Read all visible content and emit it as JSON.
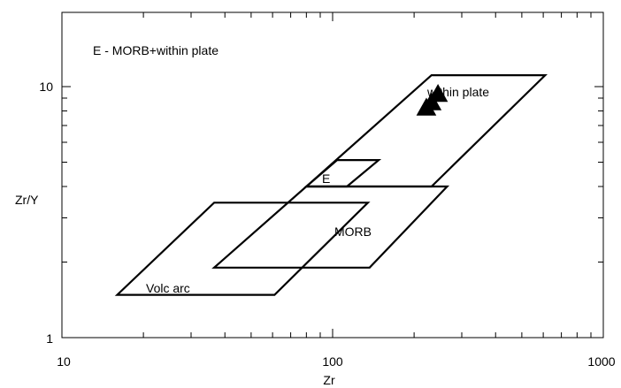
{
  "chart_data": {
    "type": "scatter",
    "title": "",
    "xlabel": "Zr",
    "ylabel": "Zr/Y",
    "xscale": "log",
    "yscale": "log",
    "xlim": [
      10,
      1000
    ],
    "ylim": [
      1,
      20
    ],
    "x_tick_labels": [
      "10",
      "100",
      "1000"
    ],
    "y_tick_labels": [
      "1",
      "10"
    ],
    "grid": false,
    "annotation": "E - MORB+within plate",
    "fields": [
      {
        "label": "Volc arc",
        "vertices": [
          [
            16,
            1.48
          ],
          [
            61,
            1.48
          ],
          [
            135,
            3.45
          ],
          [
            36.5,
            3.45
          ]
        ]
      },
      {
        "label": "MORB",
        "vertices": [
          [
            36.5,
            1.9
          ],
          [
            137,
            1.9
          ],
          [
            265,
            4.0
          ],
          [
            80,
            4.0
          ]
        ]
      },
      {
        "label": "E",
        "vertices": [
          [
            80,
            4.0
          ],
          [
            113,
            4.0
          ],
          [
            148,
            5.1
          ],
          [
            104,
            5.1
          ]
        ]
      },
      {
        "label": "within plate",
        "vertices": [
          [
            80,
            4.0
          ],
          [
            232,
            4.0
          ],
          [
            610,
            11.1
          ],
          [
            232,
            11.1
          ]
        ]
      }
    ],
    "series": [
      {
        "marker": "filled-triangle",
        "points": [
          [
            222,
            8.2
          ],
          [
            232,
            8.6
          ],
          [
            245,
            9.3
          ]
        ]
      }
    ],
    "colors": {
      "line": "#000000",
      "marker": "#000000",
      "background": "#ffffff"
    }
  }
}
